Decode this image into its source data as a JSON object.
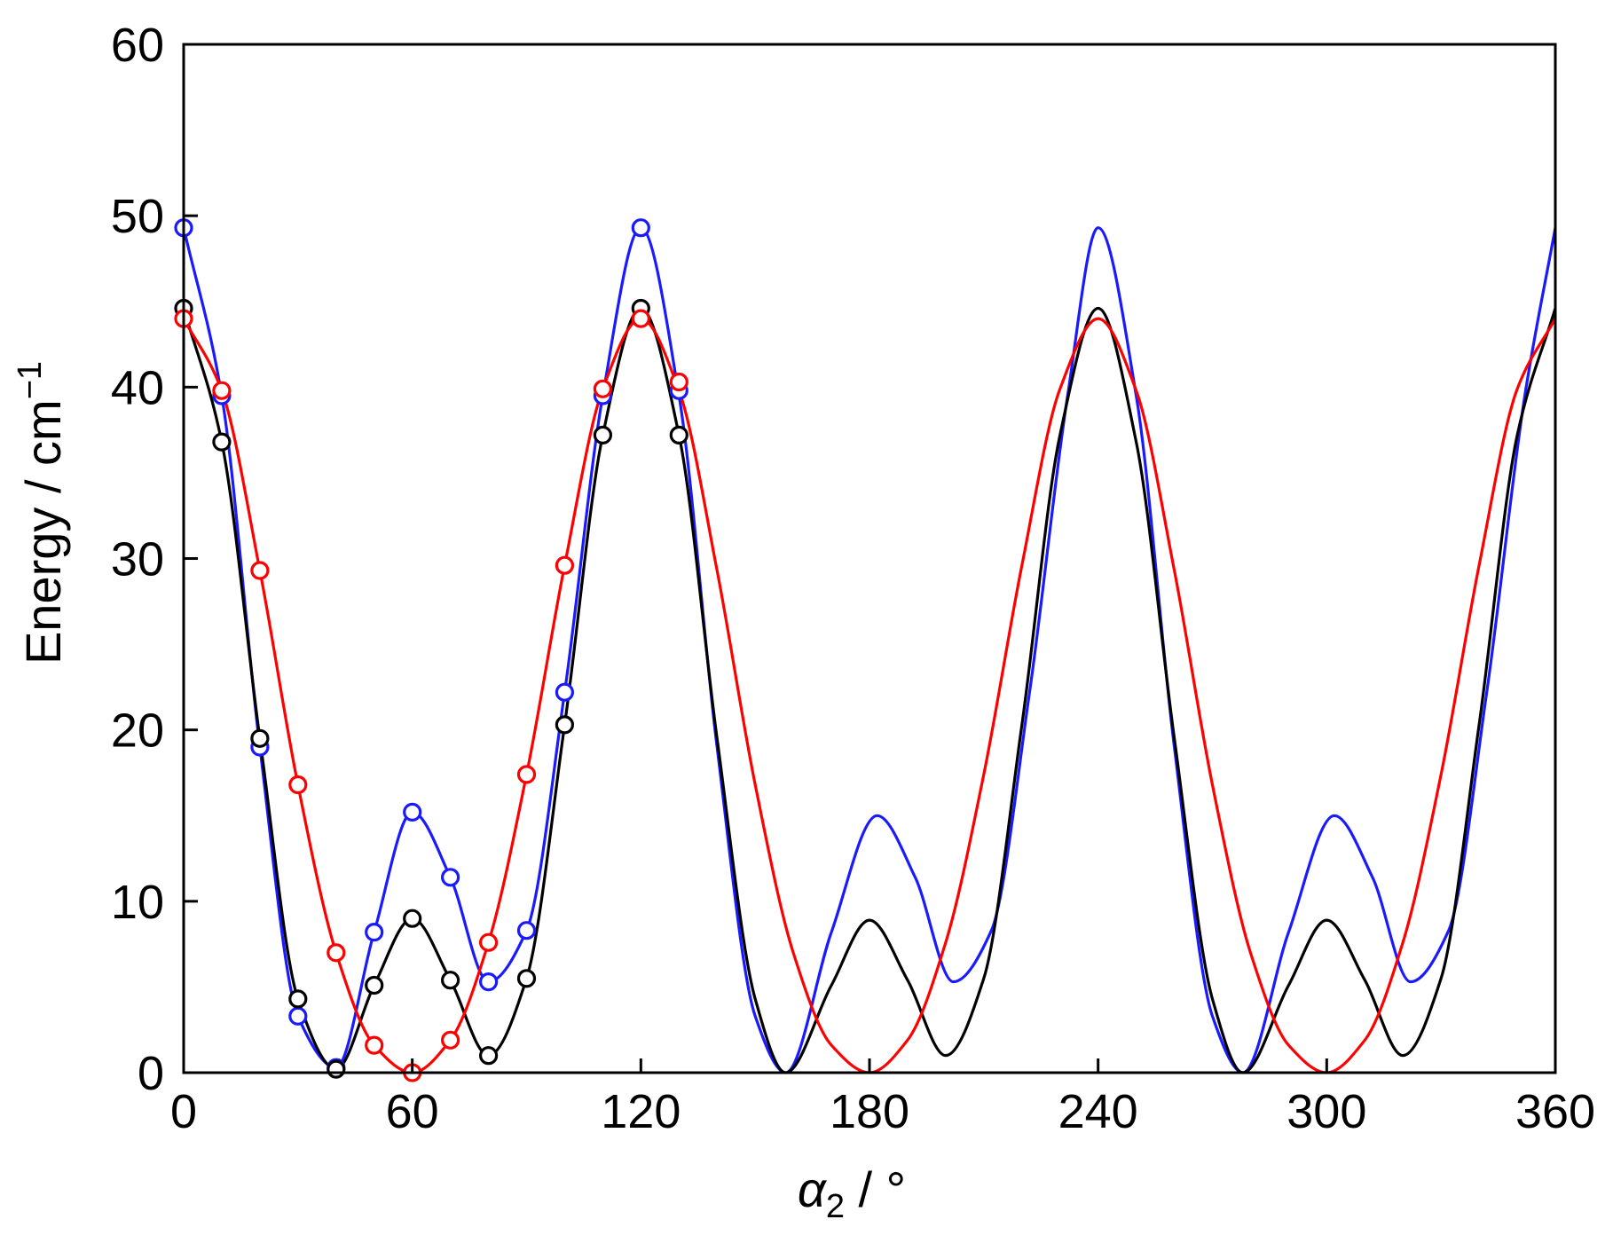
{
  "chart_data": {
    "type": "line",
    "xlabel": {
      "symbol": "α",
      "subscript": "2",
      "unit": " / °"
    },
    "ylabel": {
      "text": "Energy / cm",
      "superscript": "−1"
    },
    "xlim": [
      0,
      360
    ],
    "ylim": [
      0,
      60
    ],
    "xticks": [
      0,
      60,
      120,
      180,
      240,
      300,
      360
    ],
    "yticks": [
      0,
      10,
      20,
      30,
      40,
      50,
      60
    ],
    "grid": false,
    "legend": "none",
    "series": [
      {
        "color": "#1a1aff",
        "fit_x": [
          0,
          10,
          20,
          30,
          40,
          50,
          60,
          70,
          80,
          90,
          100,
          110,
          120,
          130,
          140,
          150,
          158,
          170,
          182,
          192,
          202,
          212,
          222,
          232,
          240,
          250,
          260,
          270,
          278,
          290,
          302,
          312,
          322,
          332,
          342,
          352,
          360
        ],
        "fit_y": [
          49.3,
          39.5,
          19.0,
          3.3,
          0.3,
          8.2,
          15.2,
          11.4,
          5.3,
          8.3,
          22.2,
          39.5,
          49.3,
          39.5,
          19.0,
          3.3,
          0.0,
          8.2,
          15.0,
          11.4,
          5.3,
          8.3,
          22.2,
          39.5,
          49.3,
          39.5,
          19.0,
          3.3,
          0.0,
          8.2,
          15.0,
          11.4,
          5.3,
          8.3,
          22.2,
          39.5,
          49.3
        ],
        "points_x": [
          0,
          10,
          20,
          30,
          40,
          50,
          60,
          70,
          80,
          90,
          100,
          110,
          120,
          130
        ],
        "points_y": [
          49.3,
          39.5,
          19.0,
          3.3,
          0.3,
          8.2,
          15.2,
          11.4,
          5.3,
          8.3,
          22.2,
          39.5,
          49.3,
          39.8
        ]
      },
      {
        "color": "#000000",
        "fit_x": [
          0,
          10,
          20,
          30,
          40,
          50,
          60,
          70,
          80,
          90,
          100,
          110,
          120,
          130,
          140,
          150,
          158,
          170,
          180,
          190,
          200,
          210,
          220,
          230,
          240,
          250,
          260,
          270,
          278,
          290,
          300,
          310,
          320,
          330,
          340,
          350,
          360
        ],
        "fit_y": [
          44.6,
          36.8,
          19.5,
          4.3,
          0.2,
          5.1,
          9.0,
          5.4,
          1.0,
          5.5,
          20.3,
          37.2,
          44.6,
          37.2,
          19.5,
          4.3,
          0.0,
          5.1,
          8.9,
          5.4,
          1.0,
          5.5,
          20.3,
          37.2,
          44.6,
          36.8,
          19.5,
          4.3,
          0.0,
          5.1,
          8.9,
          5.4,
          1.0,
          5.5,
          20.3,
          37.2,
          44.6
        ],
        "points_x": [
          0,
          10,
          20,
          30,
          40,
          50,
          60,
          70,
          80,
          90,
          100,
          110,
          120,
          130
        ],
        "points_y": [
          44.6,
          36.8,
          19.5,
          4.3,
          0.2,
          5.1,
          9.0,
          5.4,
          1.0,
          5.5,
          20.3,
          37.2,
          44.6,
          37.2
        ]
      },
      {
        "color": "#ff0000",
        "fit_x": [
          0,
          10,
          20,
          30,
          40,
          50,
          60,
          70,
          80,
          90,
          100,
          110,
          120,
          130,
          140,
          150,
          160,
          170,
          180,
          190,
          200,
          210,
          220,
          230,
          240,
          250,
          260,
          270,
          280,
          290,
          300,
          310,
          320,
          330,
          340,
          350,
          360
        ],
        "fit_y": [
          44.0,
          39.8,
          29.3,
          16.8,
          7.0,
          1.6,
          0.0,
          1.9,
          7.6,
          17.4,
          29.6,
          39.9,
          44.0,
          39.8,
          29.3,
          16.8,
          7.0,
          1.6,
          0.0,
          1.9,
          7.6,
          17.4,
          29.6,
          39.9,
          44.0,
          39.8,
          29.3,
          16.8,
          7.0,
          1.6,
          0.0,
          1.9,
          7.6,
          17.4,
          29.6,
          39.9,
          44.0
        ],
        "points_x": [
          0,
          10,
          20,
          30,
          40,
          50,
          60,
          70,
          80,
          90,
          100,
          110,
          120,
          130
        ],
        "points_y": [
          44.0,
          39.8,
          29.3,
          16.8,
          7.0,
          1.6,
          0.0,
          1.9,
          7.6,
          17.4,
          29.6,
          39.9,
          44.0,
          40.3
        ]
      }
    ]
  }
}
